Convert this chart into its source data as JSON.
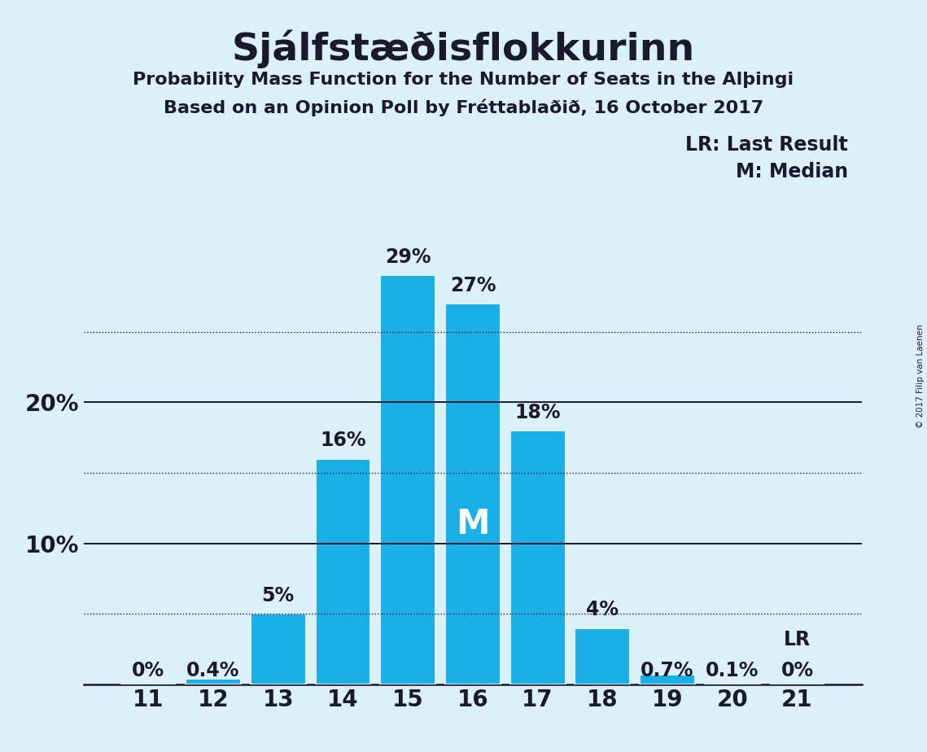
{
  "title": "Sjálfstæðisflokkurinn",
  "subtitle1": "Probability Mass Function for the Number of Seats in the Alþingi",
  "subtitle2": "Based on an Opinion Poll by Fréttablaðið, 16 October 2017",
  "copyright": "© 2017 Filip van Laenen",
  "seats": [
    11,
    12,
    13,
    14,
    15,
    16,
    17,
    18,
    19,
    20,
    21
  ],
  "probabilities": [
    0.0,
    0.4,
    5.0,
    16.0,
    29.0,
    27.0,
    18.0,
    4.0,
    0.7,
    0.1,
    0.0
  ],
  "labels": [
    "0%",
    "0.4%",
    "5%",
    "16%",
    "29%",
    "27%",
    "18%",
    "4%",
    "0.7%",
    "0.1%",
    "0%"
  ],
  "bar_color": "#1AAFE6",
  "background_color": "#DCF0FA",
  "median_seat": 16,
  "last_result_seat": 21,
  "solid_levels": [
    10,
    20
  ],
  "dotted_levels": [
    5,
    15,
    25
  ],
  "ylim": [
    0,
    32
  ],
  "xlim": [
    10.0,
    22.0
  ],
  "lr_legend_text": "LR: Last Result",
  "m_legend_text": "M: Median",
  "lr_bar_label": "LR",
  "title_fontsize": 34,
  "subtitle_fontsize": 16,
  "tick_fontsize": 20,
  "label_fontsize": 17,
  "legend_fontsize": 17,
  "m_fontsize": 30
}
